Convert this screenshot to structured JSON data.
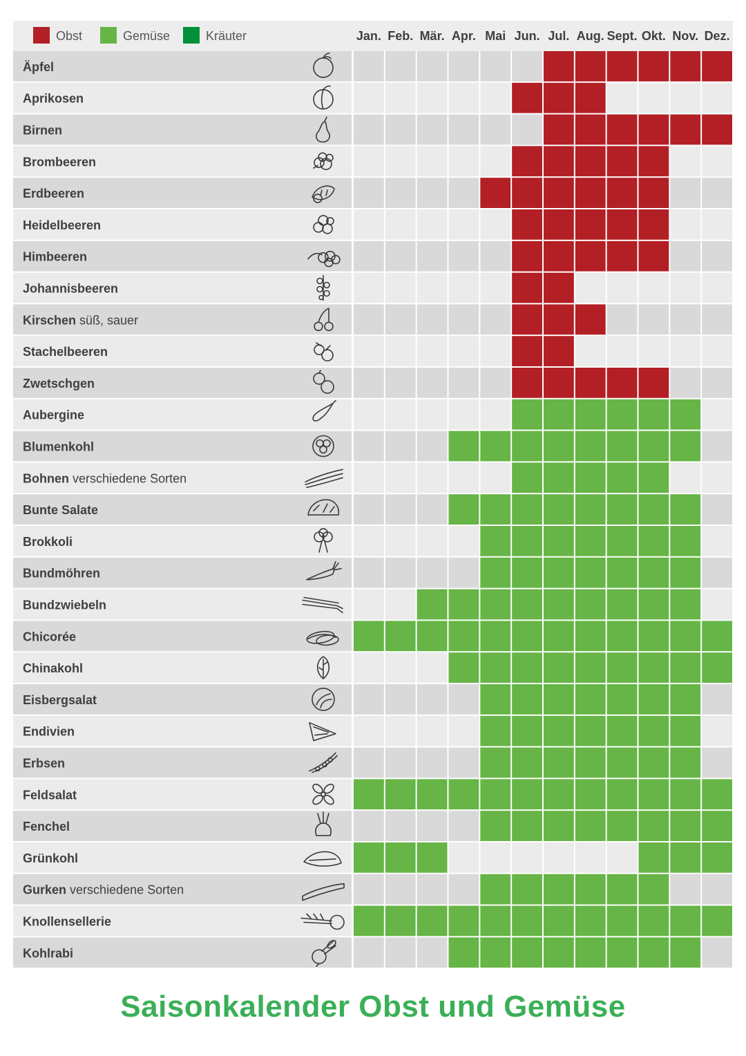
{
  "title": "Saisonkalender Obst und Gemüse",
  "colors": {
    "Obst": "#b21f24",
    "Gemüse": "#66b546",
    "Kräuter": "#00913a",
    "title": "#3aaf57",
    "row_dark": "#d9d9d9",
    "row_light": "#ebebeb",
    "header_bg": "#ededed"
  },
  "chart_data": {
    "type": "heatmap",
    "title": "Saisonkalender Obst und Gemüse",
    "legend": [
      {
        "label": "Obst",
        "color": "#b21f24"
      },
      {
        "label": "Gemüse",
        "color": "#66b546"
      },
      {
        "label": "Kräuter",
        "color": "#00913a"
      }
    ],
    "legend_position": "top-left",
    "months": [
      "Jan.",
      "Feb.",
      "Mär.",
      "Apr.",
      "Mai",
      "Jun.",
      "Jul.",
      "Aug.",
      "Sept.",
      "Okt.",
      "Nov.",
      "Dez."
    ],
    "rows": [
      {
        "name": "Äpfel",
        "note": "",
        "category": "Obst",
        "icon": "apple-icon",
        "months": [
          7,
          8,
          9,
          10,
          11,
          12
        ]
      },
      {
        "name": "Aprikosen",
        "note": "",
        "category": "Obst",
        "icon": "apricot-icon",
        "months": [
          6,
          7,
          8
        ]
      },
      {
        "name": "Birnen",
        "note": "",
        "category": "Obst",
        "icon": "pear-icon",
        "months": [
          7,
          8,
          9,
          10,
          11,
          12
        ]
      },
      {
        "name": "Brombeeren",
        "note": "",
        "category": "Obst",
        "icon": "blackberry-icon",
        "months": [
          6,
          7,
          8,
          9,
          10
        ]
      },
      {
        "name": "Erdbeeren",
        "note": "",
        "category": "Obst",
        "icon": "strawberry-icon",
        "months": [
          5,
          6,
          7,
          8,
          9,
          10
        ]
      },
      {
        "name": "Heidelbeeren",
        "note": "",
        "category": "Obst",
        "icon": "blueberry-icon",
        "months": [
          6,
          7,
          8,
          9,
          10
        ]
      },
      {
        "name": "Himbeeren",
        "note": "",
        "category": "Obst",
        "icon": "raspberry-icon",
        "months": [
          6,
          7,
          8,
          9,
          10
        ]
      },
      {
        "name": "Johannisbeeren",
        "note": "",
        "category": "Obst",
        "icon": "currant-icon",
        "months": [
          6,
          7
        ]
      },
      {
        "name": "Kirschen",
        "note": "süß, sauer",
        "category": "Obst",
        "icon": "cherry-icon",
        "months": [
          6,
          7,
          8
        ]
      },
      {
        "name": "Stachelbeeren",
        "note": "",
        "category": "Obst",
        "icon": "gooseberry-icon",
        "months": [
          6,
          7
        ]
      },
      {
        "name": "Zwetschgen",
        "note": "",
        "category": "Obst",
        "icon": "plum-icon",
        "months": [
          6,
          7,
          8,
          9,
          10
        ]
      },
      {
        "name": "Aubergine",
        "note": "",
        "category": "Gemüse",
        "icon": "eggplant-icon",
        "months": [
          6,
          7,
          8,
          9,
          10,
          11
        ]
      },
      {
        "name": "Blumenkohl",
        "note": "",
        "category": "Gemüse",
        "icon": "cauliflower-icon",
        "months": [
          4,
          5,
          6,
          7,
          8,
          9,
          10,
          11
        ]
      },
      {
        "name": "Bohnen",
        "note": "verschiedene Sorten",
        "category": "Gemüse",
        "icon": "beans-icon",
        "months": [
          6,
          7,
          8,
          9,
          10
        ]
      },
      {
        "name": "Bunte Salate",
        "note": "",
        "category": "Gemüse",
        "icon": "lettuce-icon",
        "months": [
          4,
          5,
          6,
          7,
          8,
          9,
          10,
          11
        ]
      },
      {
        "name": "Brokkoli",
        "note": "",
        "category": "Gemüse",
        "icon": "broccoli-icon",
        "months": [
          5,
          6,
          7,
          8,
          9,
          10,
          11
        ]
      },
      {
        "name": "Bundmöhren",
        "note": "",
        "category": "Gemüse",
        "icon": "carrot-icon",
        "months": [
          5,
          6,
          7,
          8,
          9,
          10,
          11
        ]
      },
      {
        "name": "Bundzwiebeln",
        "note": "",
        "category": "Gemüse",
        "icon": "spring-onion-icon",
        "months": [
          3,
          4,
          5,
          6,
          7,
          8,
          9,
          10,
          11
        ]
      },
      {
        "name": "Chicorée",
        "note": "",
        "category": "Gemüse",
        "icon": "chicory-icon",
        "months": [
          1,
          2,
          3,
          4,
          5,
          6,
          7,
          8,
          9,
          10,
          11,
          12
        ]
      },
      {
        "name": "Chinakohl",
        "note": "",
        "category": "Gemüse",
        "icon": "chinese-cabbage-icon",
        "months": [
          4,
          5,
          6,
          7,
          8,
          9,
          10,
          11,
          12
        ]
      },
      {
        "name": "Eisbergsalat",
        "note": "",
        "category": "Gemüse",
        "icon": "iceberg-lettuce-icon",
        "months": [
          5,
          6,
          7,
          8,
          9,
          10,
          11
        ]
      },
      {
        "name": "Endivien",
        "note": "",
        "category": "Gemüse",
        "icon": "endive-icon",
        "months": [
          5,
          6,
          7,
          8,
          9,
          10,
          11
        ]
      },
      {
        "name": "Erbsen",
        "note": "",
        "category": "Gemüse",
        "icon": "peas-icon",
        "months": [
          5,
          6,
          7,
          8,
          9,
          10,
          11
        ]
      },
      {
        "name": "Feldsalat",
        "note": "",
        "category": "Gemüse",
        "icon": "lambs-lettuce-icon",
        "months": [
          1,
          2,
          3,
          4,
          5,
          6,
          7,
          8,
          9,
          10,
          11,
          12
        ]
      },
      {
        "name": "Fenchel",
        "note": "",
        "category": "Gemüse",
        "icon": "fennel-icon",
        "months": [
          5,
          6,
          7,
          8,
          9,
          10,
          11,
          12
        ]
      },
      {
        "name": "Grünkohl",
        "note": "",
        "category": "Gemüse",
        "icon": "kale-icon",
        "months": [
          1,
          2,
          3,
          10,
          11,
          12
        ]
      },
      {
        "name": "Gurken",
        "note": "verschiedene Sorten",
        "category": "Gemüse",
        "icon": "cucumber-icon",
        "months": [
          5,
          6,
          7,
          8,
          9,
          10
        ]
      },
      {
        "name": "Knollensellerie",
        "note": "",
        "category": "Gemüse",
        "icon": "celeriac-icon",
        "months": [
          1,
          2,
          3,
          4,
          5,
          6,
          7,
          8,
          9,
          10,
          11,
          12
        ]
      },
      {
        "name": "Kohlrabi",
        "note": "",
        "category": "Gemüse",
        "icon": "kohlrabi-icon",
        "months": [
          4,
          5,
          6,
          7,
          8,
          9,
          10,
          11
        ]
      }
    ]
  }
}
